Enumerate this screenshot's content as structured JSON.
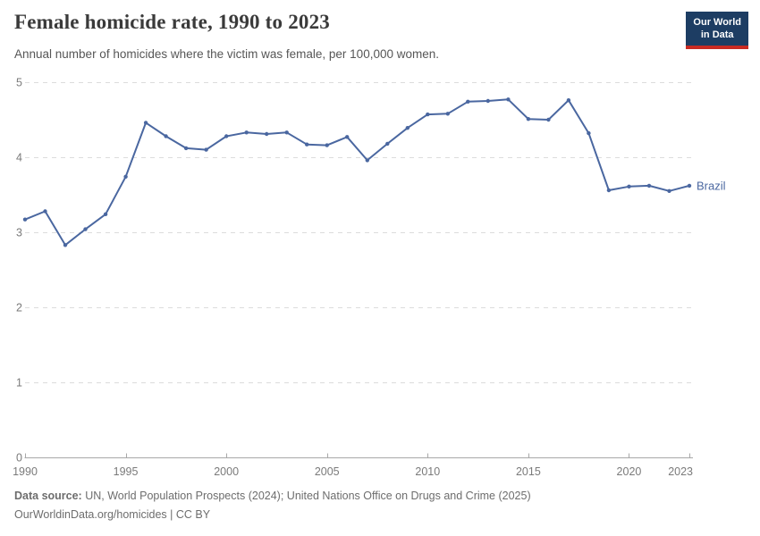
{
  "header": {
    "title": "Female homicide rate, 1990 to 2023",
    "subtitle": "Annual number of homicides where the victim was female, per 100,000 women.",
    "logo_line1": "Our World",
    "logo_line2": "in Data",
    "logo_bg_color": "#1d3d63",
    "logo_accent_color": "#c92a22"
  },
  "footer": {
    "source_label": "Data source:",
    "source_text": "UN, World Population Prospects (2024); United Nations Office on Drugs and Crime (2025)",
    "credit": "OurWorldinData.org/homicides | CC BY"
  },
  "chart_data": {
    "type": "line",
    "title": "Female homicide rate, 1990 to 2023",
    "ylabel": "",
    "xlabel": "",
    "entity_label": "Brazil",
    "line_color": "#4A67A0",
    "grid": "horizontal-dashed",
    "grid_color": "#dcdcdc",
    "axis_color": "#a8a8a8",
    "tick_label_color": "#7a7a7a",
    "xlim": [
      1990,
      2023
    ],
    "ylim": [
      0,
      5
    ],
    "xticks": [
      1990,
      1995,
      2000,
      2005,
      2010,
      2015,
      2020,
      2023
    ],
    "yticks": [
      0,
      1,
      2,
      3,
      4,
      5
    ],
    "x": [
      1990,
      1991,
      1992,
      1993,
      1994,
      1995,
      1996,
      1997,
      1998,
      1999,
      2000,
      2001,
      2002,
      2003,
      2004,
      2005,
      2006,
      2007,
      2008,
      2009,
      2010,
      2011,
      2012,
      2013,
      2014,
      2015,
      2016,
      2017,
      2018,
      2019,
      2020,
      2021,
      2022,
      2023
    ],
    "series": [
      {
        "name": "Brazil",
        "values": [
          3.17,
          3.28,
          2.83,
          3.04,
          3.24,
          3.74,
          4.46,
          4.28,
          4.12,
          4.1,
          4.28,
          4.33,
          4.31,
          4.33,
          4.17,
          4.16,
          4.27,
          3.96,
          4.18,
          4.39,
          4.57,
          4.58,
          4.74,
          4.75,
          4.77,
          4.51,
          4.5,
          4.76,
          4.32,
          3.56,
          3.61,
          3.62,
          3.55,
          3.62
        ]
      }
    ]
  }
}
